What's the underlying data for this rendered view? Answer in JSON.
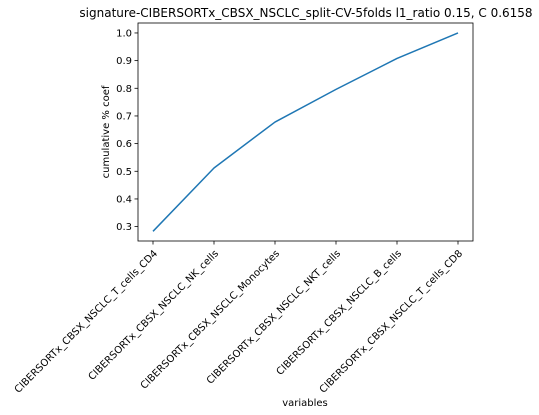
{
  "chart_data": {
    "type": "line",
    "title": "signature-CIBERSORTx_CBSX_NSCLC_split-CV-5folds l1_ratio 0.15, C 0.6158",
    "xlabel": "variables",
    "ylabel": "cumulative % coef",
    "categories": [
      "CIBERSORTx_CBSX_NSCLC_T_cells_CD4",
      "CIBERSORTx_CBSX_NSCLC_NK_cells",
      "CIBERSORTx_CBSX_NSCLC_Monocytes",
      "CIBERSORTx_CBSX_NSCLC_NKT_cells",
      "CIBERSORTx_CBSX_NSCLC_B_cells",
      "CIBERSORTx_CBSX_NSCLC_T_cells_CD8"
    ],
    "series": [
      {
        "values": [
          0.283,
          0.512,
          0.678,
          0.796,
          0.908,
          1.0
        ]
      }
    ],
    "ylim": [
      0.248,
      1.036
    ],
    "yticks": [
      "0.3",
      "0.4",
      "0.5",
      "0.6",
      "0.7",
      "0.8",
      "0.9",
      "1.0"
    ],
    "grid": false,
    "colors": {
      "line": "#1f77b4"
    }
  }
}
